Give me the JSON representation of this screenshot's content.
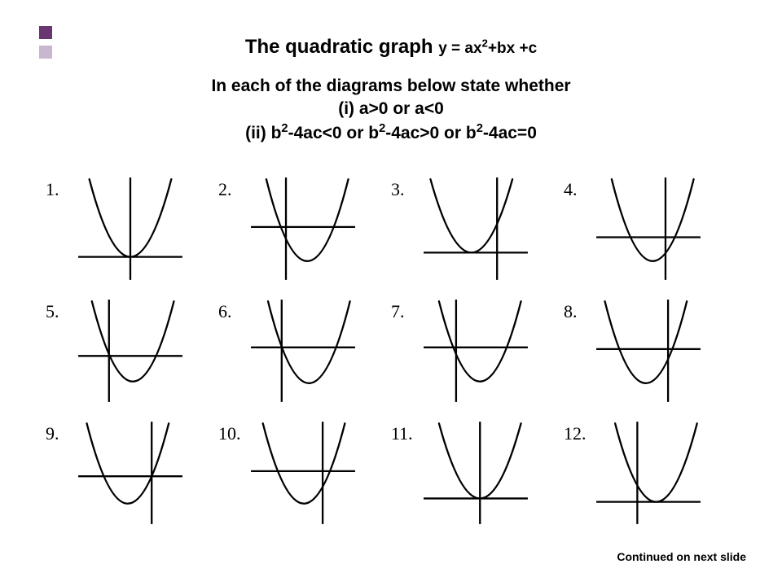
{
  "bullet_colors": {
    "dark": "#6a3672",
    "light": "#c9b6cf"
  },
  "title_main": "The quadratic graph ",
  "title_formula_prefix": "y = ax",
  "title_formula_sup": "2",
  "title_formula_suffix": "+bx +c",
  "subtitle_line1": "In each of the diagrams below state whether",
  "subtitle_line2_pre": "(i)   a>0 or a<0",
  "subtitle_line3_a": "(ii)   b",
  "subtitle_line3_b": "-4ac<0  or  b",
  "subtitle_line3_c": "-4ac>0  or   b",
  "subtitle_line3_d": "-4ac=0",
  "sup2": "2",
  "footer": "Continued on next slide",
  "stroke_color": "#000000",
  "stroke_width": 2.2,
  "cells": [
    {
      "n": "1.",
      "yaxis": 65,
      "xaxis": 95,
      "vx": 65,
      "vy": 95,
      "touch": true
    },
    {
      "n": "2.",
      "yaxis": 45,
      "xaxis": 60,
      "vx": 70,
      "vy": 100,
      "touch": false
    },
    {
      "n": "3.",
      "yaxis": 90,
      "xaxis": 90,
      "vx": 60,
      "vy": 90,
      "touch": true
    },
    {
      "n": "4.",
      "yaxis": 85,
      "xaxis": 72,
      "vx": 70,
      "vy": 100,
      "touch": false
    },
    {
      "n": "5.",
      "yaxis": 40,
      "xaxis": 68,
      "vx": 68,
      "vy": 98,
      "touch": false
    },
    {
      "n": "6.",
      "yaxis": 40,
      "xaxis": 58,
      "vx": 72,
      "vy": 100,
      "touch": false
    },
    {
      "n": "7.",
      "yaxis": 42,
      "xaxis": 58,
      "vx": 70,
      "vy": 98,
      "touch": false
    },
    {
      "n": "8.",
      "yaxis": 88,
      "xaxis": 60,
      "vx": 62,
      "vy": 100,
      "touch": false
    },
    {
      "n": "9.",
      "yaxis": 90,
      "xaxis": 66,
      "vx": 62,
      "vy": 98,
      "touch": false
    },
    {
      "n": "10.",
      "yaxis": 88,
      "xaxis": 60,
      "vx": 66,
      "vy": 98,
      "touch": false
    },
    {
      "n": "11.",
      "yaxis": 70,
      "xaxis": 92,
      "vx": 70,
      "vy": 92,
      "touch": true
    },
    {
      "n": "12.",
      "yaxis": 52,
      "xaxis": 96,
      "vx": 74,
      "vy": 96,
      "touch": true
    }
  ]
}
